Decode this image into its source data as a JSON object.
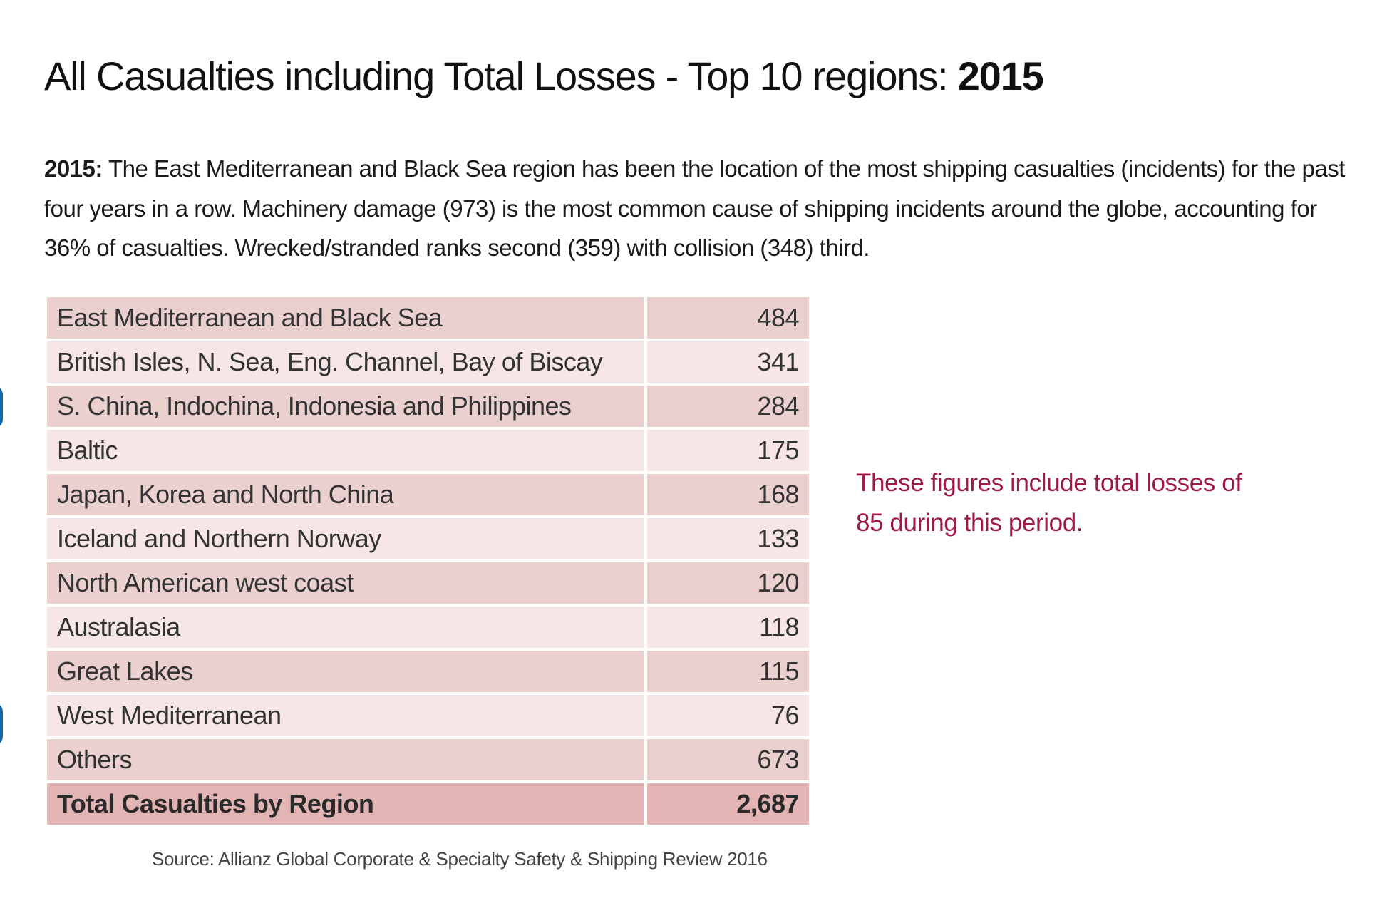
{
  "title": {
    "text": "All Casualties including Total Losses - Top 10 regions: ",
    "year": "2015"
  },
  "intro": {
    "lead": "2015:",
    "text": " The East Mediterranean and Black Sea region has been the location of the most shipping casualties (incidents) for the past four years in a row. Machinery damage (973) is the most common cause of shipping incidents around the globe, accounting for 36% of casualties. Wrecked/stranded ranks second (359) with collision (348) third."
  },
  "table": {
    "rows": [
      {
        "region": "East Mediterranean and Black Sea",
        "value": "484"
      },
      {
        "region": "British Isles, N. Sea, Eng. Channel, Bay of Biscay",
        "value": "341"
      },
      {
        "region": "S. China, Indochina, Indonesia and Philippines",
        "value": "284"
      },
      {
        "region": "Baltic",
        "value": "175"
      },
      {
        "region": "Japan, Korea and North China",
        "value": "168"
      },
      {
        "region": "Iceland and Northern Norway",
        "value": "133"
      },
      {
        "region": "North American west coast",
        "value": "120"
      },
      {
        "region": "Australasia",
        "value": "118"
      },
      {
        "region": "Great Lakes",
        "value": "115"
      },
      {
        "region": "West Mediterranean",
        "value": "76"
      },
      {
        "region": "Others",
        "value": "673"
      }
    ],
    "total": {
      "region": "Total Casualties by Region",
      "value": "2,687"
    }
  },
  "note": "These figures include total losses of 85 during this period.",
  "source": "Source: Allianz Global Corporate & Specialty Safety & Shipping Review 2016",
  "colors": {
    "row_dark": "#ead0cf",
    "row_light": "#f6e6e5",
    "row_total": "#e2b5b4",
    "note_text": "#9e1b45",
    "accent_blue": "#1366a8"
  }
}
